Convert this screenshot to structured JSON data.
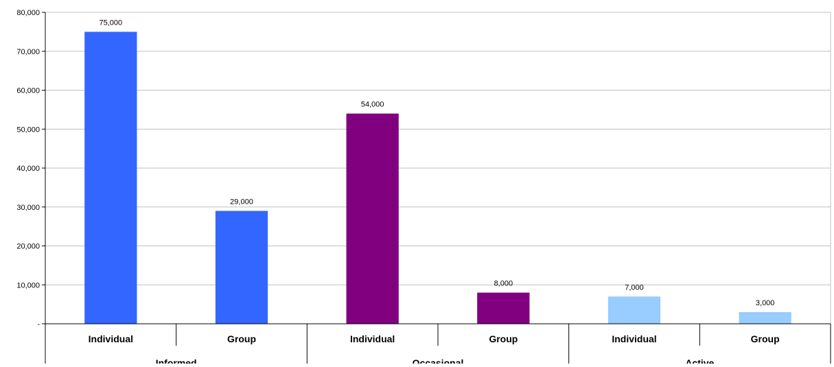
{
  "chart_data": {
    "type": "bar",
    "groups": [
      "Informed",
      "Occasional",
      "Active"
    ],
    "categories": [
      "Individual",
      "Group",
      "Individual",
      "Group",
      "Individual",
      "Group"
    ],
    "values": [
      75000,
      29000,
      54000,
      8000,
      7000,
      3000
    ],
    "value_labels": [
      "75,000",
      "29,000",
      "54,000",
      "8,000",
      "7,000",
      "3,000"
    ],
    "bar_colors": [
      "#3366FF",
      "#3366FF",
      "#800080",
      "#800080",
      "#99CCFF",
      "#99CCFF"
    ],
    "ylim": [
      0,
      80000
    ],
    "y_ticks": [
      0,
      10000,
      20000,
      30000,
      40000,
      50000,
      60000,
      70000,
      80000
    ],
    "y_tick_labels": [
      "-",
      "10,000",
      "20,000",
      "30,000",
      "40,000",
      "50,000",
      "60,000",
      "70,000",
      "80,000"
    ],
    "grid": true,
    "legend": "none",
    "title": "",
    "xlabel": "",
    "ylabel": ""
  }
}
